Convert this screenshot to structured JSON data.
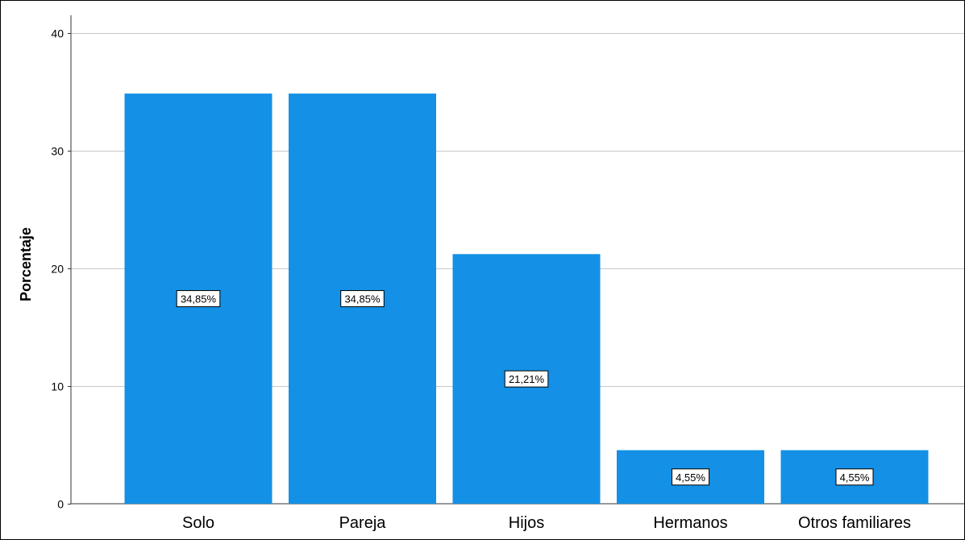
{
  "chart_data": {
    "type": "bar",
    "title": "",
    "xlabel": "",
    "ylabel": "Porcentaje",
    "ylim": [
      0,
      41.5
    ],
    "yticks": [
      0,
      10,
      20,
      30,
      40
    ],
    "grid": true,
    "bar_color": "#1490e6",
    "categories": [
      "Solo",
      "Pareja",
      "Hijos",
      "Hermanos",
      "Otros familiares"
    ],
    "values": [
      34.85,
      34.85,
      21.21,
      4.55,
      4.55
    ],
    "data_labels": [
      "34,85%",
      "34,85%",
      "21,21%",
      "4,55%",
      "4,55%"
    ]
  }
}
